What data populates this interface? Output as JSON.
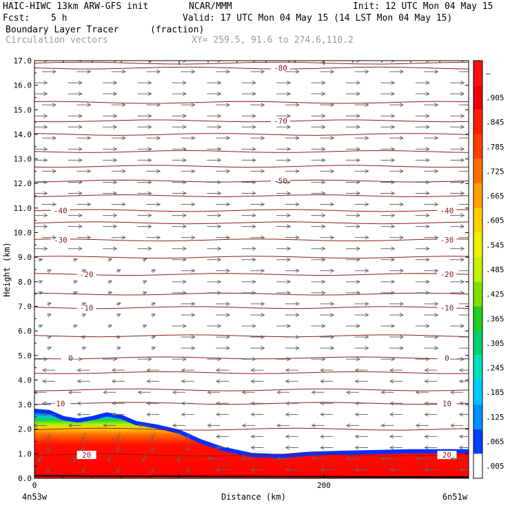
{
  "header": {
    "model": "HAIC-HIWC 13km ARW-GFS init",
    "org": "NCAR/MMM",
    "init": "Init: 12 UTC Mon 04 May 15",
    "fcst_label": "Fcst:",
    "fcst_value": "5 h",
    "valid": "Valid: 17 UTC Mon 04 May 15 (14 LST Mon 04 May 15)",
    "field_name": "Boundary Layer Tracer",
    "field_units": "(fraction)",
    "overlay": "Circulation vectors",
    "xy": "XY= 259.5, 91.6 to 274.6,110.2"
  },
  "chart_data": {
    "type": "heatmap",
    "xlabel": "Distance (km)",
    "ylabel": "Height (km)",
    "xlim": [
      0,
      300
    ],
    "ylim": [
      0,
      17
    ],
    "x_ticks": [
      {
        "v": 0,
        "label": "0"
      },
      {
        "v": 200,
        "label": "200"
      }
    ],
    "x_end_labels": {
      "left": "4n53w",
      "right": "6n51w"
    },
    "y_ticks": [
      "0.0",
      "1.0",
      "2.0",
      "3.0",
      "4.0",
      "5.0",
      "6.0",
      "7.0",
      "8.0",
      "9.0",
      "10.0",
      "11.0",
      "12.0",
      "13.0",
      "14.0",
      "15.0",
      "16.0",
      "17.0"
    ],
    "colorbar": {
      "labels": [
        ".005",
        ".065",
        ".125",
        ".185",
        ".245",
        ".305",
        ".365",
        ".425",
        ".485",
        ".545",
        ".605",
        ".665",
        ".725",
        ".785",
        ".845",
        ".905",
        "–"
      ],
      "colors": [
        "#ffffff",
        "#0040ff",
        "#0090ff",
        "#00c8ff",
        "#00e0c0",
        "#00d070",
        "#20d020",
        "#80e000",
        "#c8f000",
        "#f0f000",
        "#ffd000",
        "#ffa000",
        "#ff7000",
        "#ff4000",
        "#ff2000",
        "#f00000",
        "#ff1010"
      ]
    },
    "tracer_top_km": [
      {
        "x": 0,
        "y": 2.75
      },
      {
        "x": 10,
        "y": 2.7
      },
      {
        "x": 20,
        "y": 2.45
      },
      {
        "x": 30,
        "y": 2.35
      },
      {
        "x": 40,
        "y": 2.45
      },
      {
        "x": 50,
        "y": 2.6
      },
      {
        "x": 60,
        "y": 2.5
      },
      {
        "x": 70,
        "y": 2.25
      },
      {
        "x": 85,
        "y": 2.1
      },
      {
        "x": 100,
        "y": 1.9
      },
      {
        "x": 115,
        "y": 1.5
      },
      {
        "x": 130,
        "y": 1.2
      },
      {
        "x": 150,
        "y": 0.95
      },
      {
        "x": 170,
        "y": 0.9
      },
      {
        "x": 190,
        "y": 1.0
      },
      {
        "x": 220,
        "y": 1.05
      },
      {
        "x": 260,
        "y": 1.1
      },
      {
        "x": 300,
        "y": 1.1
      }
    ],
    "temperature_contours": [
      {
        "label": "-80",
        "y": 16.7,
        "label_x": [
          170
        ]
      },
      {
        "label": "-70",
        "y": 14.55,
        "label_x": [
          170
        ]
      },
      {
        "label": "-50",
        "y": 12.1,
        "label_x": [
          170
        ]
      },
      {
        "label": "-40",
        "y": 10.9,
        "label_x": [
          18,
          285
        ]
      },
      {
        "label": "-30",
        "y": 9.7,
        "label_x": [
          18,
          285
        ]
      },
      {
        "label": "-20",
        "y": 8.3,
        "label_x": [
          36,
          285
        ]
      },
      {
        "label": "-10",
        "y": 6.95,
        "label_x": [
          36,
          285
        ]
      },
      {
        "label": "0",
        "y": 4.9,
        "label_x": [
          25,
          285
        ]
      },
      {
        "label": "10",
        "y": 3.05,
        "label_x": [
          18,
          285
        ]
      },
      {
        "label": "20",
        "y": 0.95,
        "label_x": [
          36,
          285
        ]
      }
    ],
    "unlabeled_contour_levels_km": [
      16.9,
      15.3,
      14.0,
      13.3,
      12.7,
      11.5,
      10.4,
      9.0,
      7.5,
      5.8,
      4.3,
      3.6,
      2.0
    ],
    "vector_field": {
      "description_levels_km": [
        [
          0,
          5,
          "westward"
        ],
        [
          5,
          17,
          "eastward"
        ]
      ]
    }
  },
  "colors": {
    "contour": "#8b1a1a",
    "vector": "#666666",
    "axis": "#000000"
  }
}
